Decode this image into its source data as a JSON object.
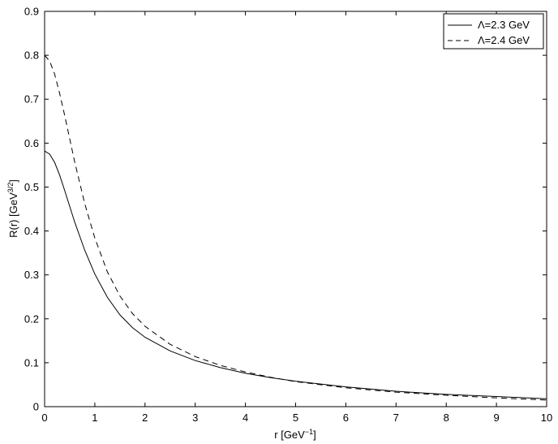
{
  "chart_data": {
    "type": "line",
    "title": "",
    "xlabel": "r [GeV",
    "xlabel_sup": "−1",
    "xlabel_end": "]",
    "ylabel": "R(r) [GeV",
    "ylabel_sup": "3/2",
    "ylabel_end": "]",
    "xlim": [
      0,
      10
    ],
    "ylim": [
      0,
      0.9
    ],
    "xticks": [
      "0",
      "1",
      "2",
      "3",
      "4",
      "5",
      "6",
      "7",
      "8",
      "9",
      "10"
    ],
    "yticks": [
      "0",
      "0.1",
      "0.2",
      "0.3",
      "0.4",
      "0.5",
      "0.6",
      "0.7",
      "0.8",
      "0.9"
    ],
    "grid": false,
    "legend_position": "top-right",
    "series": [
      {
        "name": "Λ=2.3 GeV",
        "style": "solid",
        "color": "#000000",
        "x": [
          0,
          0.1,
          0.2,
          0.3,
          0.4,
          0.5,
          0.6,
          0.8,
          1.0,
          1.25,
          1.5,
          1.75,
          2.0,
          2.5,
          3.0,
          3.5,
          4.0,
          4.5,
          5.0,
          6.0,
          7.0,
          8.0,
          9.0,
          10.0
        ],
        "y": [
          0.582,
          0.575,
          0.556,
          0.527,
          0.492,
          0.456,
          0.42,
          0.356,
          0.302,
          0.249,
          0.209,
          0.18,
          0.158,
          0.127,
          0.105,
          0.089,
          0.076,
          0.066,
          0.058,
          0.045,
          0.035,
          0.028,
          0.023,
          0.018
        ]
      },
      {
        "name": "Λ=2.4 GeV",
        "style": "dashed",
        "color": "#000000",
        "x": [
          0,
          0.1,
          0.2,
          0.3,
          0.4,
          0.5,
          0.6,
          0.8,
          1.0,
          1.25,
          1.5,
          1.75,
          2.0,
          2.5,
          3.0,
          3.5,
          4.0,
          4.5,
          5.0,
          6.0,
          7.0,
          8.0,
          9.0,
          10.0
        ],
        "y": [
          0.8,
          0.787,
          0.757,
          0.713,
          0.663,
          0.61,
          0.557,
          0.462,
          0.384,
          0.307,
          0.252,
          0.212,
          0.183,
          0.142,
          0.114,
          0.094,
          0.079,
          0.067,
          0.057,
          0.043,
          0.033,
          0.026,
          0.02,
          0.015
        ]
      }
    ]
  }
}
